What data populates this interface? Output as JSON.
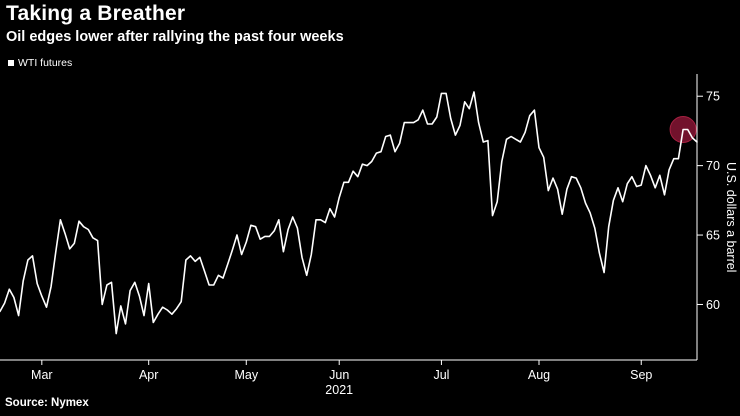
{
  "header": {
    "title": "Taking a Breather",
    "subtitle": "Oil edges lower after rallying the past four weeks"
  },
  "legend": {
    "label": "WTI futures",
    "marker_color": "#ffffff"
  },
  "footer": {
    "source": "Source: Nymex"
  },
  "chart_data": {
    "type": "line",
    "title": "Taking a Breather",
    "subtitle": "Oil edges lower after rallying the past four weeks",
    "ylabel": "U.S. dollars a barrel",
    "yticks": [
      60,
      65,
      70,
      75
    ],
    "ylim": [
      56.0,
      76.6
    ],
    "background": "#000000",
    "axis_color": "#ffffff",
    "grid": false,
    "legend_position": "top-left",
    "x_axis": {
      "months": [
        {
          "label": "Mar",
          "index": 9
        },
        {
          "label": "Apr",
          "index": 32
        },
        {
          "label": "May",
          "index": 53
        },
        {
          "label": "Jun",
          "index": 73
        },
        {
          "label": "Jul",
          "index": 95
        },
        {
          "label": "Aug",
          "index": 116
        },
        {
          "label": "Sep",
          "index": 138
        }
      ],
      "year_label": {
        "text": "2021",
        "month_index": 73
      }
    },
    "series": [
      {
        "name": "WTI futures",
        "color": "#ffffff",
        "values": [
          59.5,
          60.1,
          61.1,
          60.5,
          59.2,
          61.7,
          63.2,
          63.5,
          61.5,
          60.6,
          59.8,
          61.3,
          63.8,
          66.1,
          65.1,
          64.0,
          64.4,
          66.0,
          65.6,
          65.4,
          64.8,
          64.6,
          60.0,
          61.4,
          61.6,
          57.9,
          59.9,
          58.6,
          61.0,
          61.6,
          60.6,
          59.2,
          61.5,
          58.7,
          59.3,
          59.8,
          59.6,
          59.3,
          59.7,
          60.2,
          63.2,
          63.5,
          63.1,
          63.4,
          62.4,
          61.4,
          61.4,
          62.1,
          61.9,
          62.9,
          63.9,
          65.0,
          63.6,
          64.5,
          65.7,
          65.6,
          64.7,
          64.9,
          64.9,
          65.3,
          66.1,
          63.8,
          65.4,
          66.3,
          65.5,
          63.4,
          62.1,
          63.6,
          66.1,
          66.1,
          65.9,
          66.9,
          66.3,
          67.7,
          68.8,
          68.8,
          69.6,
          69.2,
          70.1,
          70.0,
          70.3,
          70.9,
          71.0,
          72.1,
          72.2,
          71.0,
          71.6,
          73.1,
          73.1,
          73.1,
          73.3,
          74.0,
          73.0,
          73.0,
          73.5,
          75.2,
          75.2,
          73.4,
          72.2,
          72.9,
          74.6,
          74.1,
          75.3,
          73.1,
          71.7,
          71.8,
          66.4,
          67.4,
          70.3,
          71.9,
          72.1,
          71.9,
          71.7,
          72.4,
          73.6,
          74.0,
          71.3,
          70.6,
          68.2,
          69.1,
          68.3,
          66.5,
          68.3,
          69.2,
          69.1,
          68.4,
          67.3,
          66.6,
          65.5,
          63.7,
          62.3,
          65.6,
          67.5,
          68.4,
          67.4,
          68.7,
          69.2,
          68.5,
          68.6,
          70.0,
          69.3,
          68.4,
          69.3,
          67.9,
          69.7,
          70.5,
          70.5,
          72.6,
          72.6,
          72.0,
          71.7
        ]
      }
    ],
    "highlight": {
      "index": 147,
      "radius": 13,
      "fill": "#7c1430",
      "stroke": "#a82142"
    }
  }
}
